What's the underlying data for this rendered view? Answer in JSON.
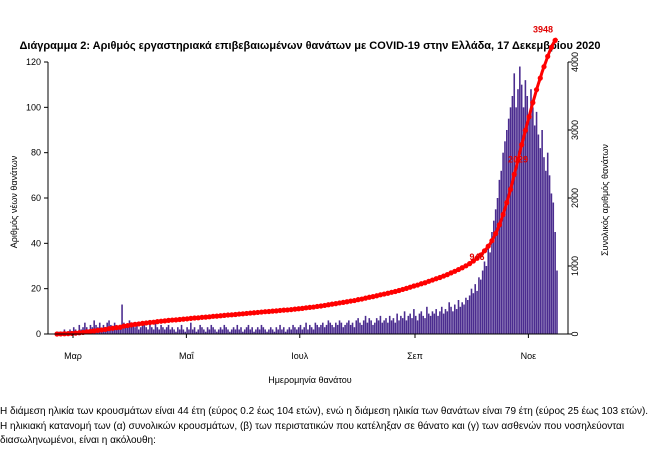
{
  "chart_data": {
    "type": "bar",
    "title": "Διάγραμμα 2: Αριθμός εργαστηριακά επιβεβαιωμένων θανάτων με COVID-19 στην Ελλάδα, 17 Δεκεμβρίου 2020",
    "xlabel": "Ημερομηνία θανάτου",
    "ylabel": "Αριθμός νέων θανάτων",
    "y2label": "Συνολικός αριθμός θανάτων",
    "xticks": [
      "Μαρ",
      "Μαΐ",
      "Ιουλ",
      "Σεπ",
      "Νοε"
    ],
    "ylim": [
      0,
      120
    ],
    "yticks": [
      0,
      20,
      40,
      60,
      80,
      100,
      120
    ],
    "y2lim": [
      0,
      4000
    ],
    "y2ticks": [
      0,
      1000,
      2000,
      3000,
      4000
    ],
    "bar_color": "#4b2c8f",
    "line_color": "#ff0000",
    "annotations": [
      {
        "text": "3948"
      },
      {
        "text": "2029"
      },
      {
        "text": "946"
      }
    ],
    "series": [
      {
        "type": "bar",
        "values": [
          0,
          1,
          0,
          1,
          2,
          1,
          0,
          2,
          1,
          3,
          2,
          1,
          4,
          2,
          3,
          5,
          3,
          2,
          4,
          3,
          6,
          4,
          3,
          5,
          2,
          4,
          3,
          5,
          6,
          4,
          3,
          5,
          4,
          2,
          3,
          13,
          5,
          4,
          3,
          6,
          4,
          5,
          3,
          4,
          2,
          3,
          5,
          4,
          3,
          2,
          4,
          3,
          2,
          5,
          3,
          2,
          4,
          3,
          2,
          3,
          4,
          2,
          3,
          2,
          1,
          3,
          2,
          4,
          2,
          1,
          3,
          2,
          5,
          2,
          3,
          1,
          2,
          4,
          3,
          2,
          1,
          3,
          2,
          4,
          3,
          2,
          1,
          2,
          3,
          2,
          4,
          3,
          2,
          1,
          2,
          3,
          2,
          4,
          2,
          3,
          1,
          2,
          3,
          4,
          2,
          3,
          1,
          2,
          3,
          2,
          4,
          3,
          2,
          1,
          2,
          3,
          2,
          1,
          3,
          2,
          4,
          2,
          3,
          1,
          2,
          3,
          2,
          4,
          3,
          2,
          3,
          4,
          2,
          3,
          5,
          2,
          4,
          3,
          2,
          5,
          4,
          3,
          4,
          5,
          3,
          4,
          6,
          5,
          4,
          3,
          5,
          4,
          6,
          5,
          3,
          4,
          5,
          6,
          4,
          5,
          3,
          6,
          7,
          5,
          4,
          6,
          8,
          5,
          7,
          6,
          4,
          5,
          7,
          6,
          8,
          5,
          6,
          7,
          5,
          8,
          6,
          7,
          5,
          9,
          6,
          8,
          7,
          10,
          6,
          8,
          9,
          7,
          11,
          8,
          6,
          9,
          10,
          8,
          7,
          12,
          9,
          8,
          10,
          9,
          11,
          8,
          10,
          12,
          9,
          11,
          10,
          14,
          12,
          10,
          13,
          11,
          15,
          12,
          14,
          13,
          16,
          15,
          17,
          20,
          18,
          22,
          19,
          25,
          24,
          28,
          32,
          30,
          38,
          36,
          45,
          50,
          55,
          60,
          68,
          72,
          80,
          85,
          90,
          95,
          100,
          105,
          115,
          100,
          108,
          118,
          110,
          100,
          112,
          105,
          95,
          108,
          100,
          92,
          98,
          88,
          82,
          90,
          78,
          72,
          80,
          70,
          62,
          58,
          45,
          28
        ]
      },
      {
        "type": "line",
        "name": "cumulative",
        "values": [
          0,
          1,
          1,
          2,
          4,
          5,
          5,
          7,
          8,
          11,
          13,
          14,
          18,
          20,
          23,
          28,
          31,
          33,
          37,
          40,
          46,
          50,
          53,
          58,
          60,
          64,
          67,
          72,
          78,
          82,
          85,
          90,
          94,
          96,
          99,
          112,
          117,
          121,
          124,
          130,
          134,
          139,
          142,
          146,
          148,
          151,
          156,
          160,
          163,
          165,
          169,
          172,
          174,
          179,
          182,
          184,
          188,
          191,
          193,
          196,
          200,
          202,
          205,
          207,
          208,
          211,
          213,
          217,
          219,
          220,
          223,
          225,
          230,
          232,
          235,
          236,
          238,
          242,
          245,
          247,
          248,
          251,
          253,
          257,
          260,
          262,
          263,
          265,
          268,
          270,
          274,
          277,
          279,
          280,
          282,
          285,
          287,
          291,
          293,
          296,
          297,
          299,
          302,
          306,
          308,
          311,
          312,
          314,
          317,
          319,
          323,
          326,
          328,
          329,
          331,
          334,
          336,
          337,
          340,
          342,
          346,
          348,
          351,
          352,
          354,
          357,
          359,
          363,
          366,
          368,
          371,
          375,
          377,
          380,
          385,
          387,
          391,
          394,
          396,
          401,
          405,
          408,
          412,
          417,
          420,
          424,
          430,
          435,
          439,
          442,
          447,
          451,
          457,
          462,
          465,
          469,
          474,
          480,
          484,
          489,
          492,
          498,
          505,
          510,
          514,
          520,
          528,
          533,
          540,
          546,
          550,
          555,
          562,
          568,
          576,
          581,
          587,
          594,
          599,
          607,
          613,
          620,
          625,
          634,
          640,
          648,
          655,
          665,
          671,
          679,
          688,
          695,
          706,
          714,
          720,
          729,
          739,
          747,
          754,
          766,
          775,
          783,
          793,
          802,
          813,
          821,
          831,
          843,
          852,
          863,
          873,
          887,
          899,
          909,
          922,
          933,
          948,
          960,
          974,
          987,
          1003,
          1018,
          1035,
          1055,
          1073,
          1095,
          1114,
          1139,
          1163,
          1191,
          1223,
          1253,
          1291,
          1327,
          1372,
          1422,
          1477,
          1537,
          1605,
          1677,
          1757,
          1842,
          1932,
          2027,
          2127,
          2232,
          2347,
          2447,
          2555,
          2673,
          2783,
          2883,
          2995,
          3100,
          3195,
          3303,
          3403,
          3495,
          3593,
          3681,
          3763,
          3853,
          3931,
          4003,
          4083,
          4153,
          4215,
          4273,
          4318,
          4346
        ]
      }
    ]
  },
  "text": {
    "line1": "Η διάμεση ηλικία των κρουσμάτων είναι 44 έτη (εύρος 0.2 έως 104 ετών), ενώ η διάμεση ηλικία των θανάτων είναι 79 έτη (εύρος 25 έως 103 ετών).",
    "line2": "Η ηλικιακή κατανομή των (α) συνολικών κρουσμάτων, (β) των περιστατικών που κατέληξαν σε θάνατο και (γ) των ασθενών που νοσηλεύονται",
    "line3": "διασωληνωμένοι, είναι η ακόλουθη:"
  }
}
